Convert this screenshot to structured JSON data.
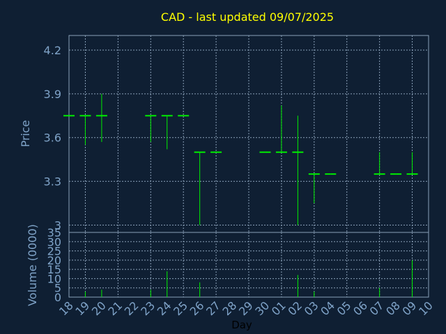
{
  "colors": {
    "background": "#0f1f33",
    "frame": "#8aa0b8",
    "grid": "#8aa0b8",
    "title": "#ffff00",
    "axis_text": "#7fa3c8",
    "xlabel_text": "#000000",
    "price": "#00ee00",
    "volume": "#00ee00"
  },
  "chart_data": [
    {
      "type": "ohlc",
      "title": "CAD - last updated 09/07/2025",
      "ylabel": "Price",
      "ylim": [
        2.95,
        4.3
      ],
      "yticks": [
        3,
        3.3,
        3.6,
        3.9,
        4.2
      ],
      "ytick_labels": [
        "3",
        "3.3",
        "3.6",
        "3.9",
        "4.2"
      ],
      "grid": true,
      "categories": [
        "18",
        "19",
        "20",
        "21",
        "22",
        "23",
        "24",
        "25",
        "26",
        "27",
        "28",
        "29",
        "30",
        "01",
        "02",
        "03",
        "04",
        "05",
        "06",
        "07",
        "08",
        "09",
        "10"
      ],
      "bars": [
        {
          "day": "18",
          "open": 3.75,
          "high": 3.75,
          "low": 3.75,
          "close": 3.75
        },
        {
          "day": "19",
          "open": 3.75,
          "high": 3.75,
          "low": 3.55,
          "close": 3.75
        },
        {
          "day": "20",
          "open": 3.75,
          "high": 3.9,
          "low": 3.57,
          "close": 3.75
        },
        {
          "day": "23",
          "open": 3.75,
          "high": 3.75,
          "low": 3.57,
          "close": 3.75
        },
        {
          "day": "24",
          "open": 3.75,
          "high": 3.75,
          "low": 3.52,
          "close": 3.75
        },
        {
          "day": "25",
          "open": 3.75,
          "high": 3.75,
          "low": 3.75,
          "close": 3.75
        },
        {
          "day": "26",
          "open": 3.5,
          "high": 3.5,
          "low": 3.0,
          "close": 3.5
        },
        {
          "day": "27",
          "open": 3.5,
          "high": 3.5,
          "low": 3.5,
          "close": 3.5
        },
        {
          "day": "30",
          "open": 3.5,
          "high": 3.5,
          "low": 3.5,
          "close": 3.5
        },
        {
          "day": "01",
          "open": 3.5,
          "high": 3.82,
          "low": 3.5,
          "close": 3.5
        },
        {
          "day": "02",
          "open": 3.5,
          "high": 3.75,
          "low": 3.0,
          "close": 3.5
        },
        {
          "day": "03",
          "open": 3.35,
          "high": 3.35,
          "low": 3.15,
          "close": 3.35
        },
        {
          "day": "04",
          "open": 3.35,
          "high": 3.35,
          "low": 3.35,
          "close": 3.35
        },
        {
          "day": "07",
          "open": 3.35,
          "high": 3.5,
          "low": 3.35,
          "close": 3.35
        },
        {
          "day": "08",
          "open": 3.35,
          "high": 3.35,
          "low": 3.35,
          "close": 3.35
        },
        {
          "day": "09",
          "open": 3.35,
          "high": 3.5,
          "low": 3.35,
          "close": 3.35
        }
      ]
    },
    {
      "type": "bar",
      "ylabel": "Volume (0000)",
      "xlabel": "Day",
      "ylim": [
        0,
        35
      ],
      "yticks": [
        0,
        5,
        10,
        15,
        20,
        25,
        30,
        35
      ],
      "ytick_labels": [
        "0",
        "5",
        "10",
        "15",
        "20",
        "25",
        "30",
        "35"
      ],
      "grid": true,
      "categories": [
        "18",
        "19",
        "20",
        "21",
        "22",
        "23",
        "24",
        "25",
        "26",
        "27",
        "28",
        "29",
        "30",
        "01",
        "02",
        "03",
        "04",
        "05",
        "06",
        "07",
        "08",
        "09",
        "10"
      ],
      "bars": [
        {
          "day": "19",
          "value": 3
        },
        {
          "day": "20",
          "value": 4
        },
        {
          "day": "23",
          "value": 4
        },
        {
          "day": "24",
          "value": 14
        },
        {
          "day": "26",
          "value": 8
        },
        {
          "day": "02",
          "value": 12
        },
        {
          "day": "03",
          "value": 3
        },
        {
          "day": "07",
          "value": 5
        },
        {
          "day": "09",
          "value": 20
        }
      ]
    }
  ]
}
